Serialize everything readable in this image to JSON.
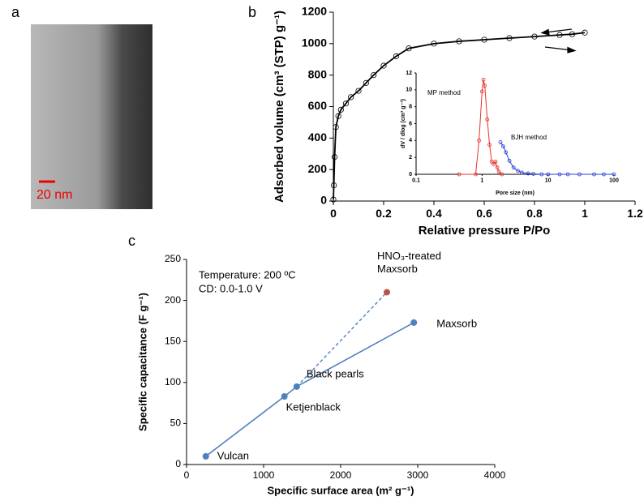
{
  "figure": {
    "panel_labels": [
      "a",
      "b",
      "c"
    ],
    "scale_bar": "20 nm"
  },
  "chart_data": [
    {
      "type": "line",
      "x_label": "Relative pressure P/Po",
      "y_label": "Adsorbed volume (cm³ (STP) g⁻¹)",
      "xlim": [
        0,
        1.2
      ],
      "xticks": [
        0,
        0.2,
        0.4,
        0.6,
        0.8,
        1,
        1.2
      ],
      "ylim": [
        0,
        1200
      ],
      "yticks": [
        0,
        200,
        400,
        600,
        800,
        1000,
        1200
      ],
      "series": [
        {
          "color": "#000000",
          "x": [
            0,
            0.002,
            0.005,
            0.01,
            0.02,
            0.03,
            0.05,
            0.07,
            0.1,
            0.13,
            0.16,
            0.2,
            0.25,
            0.3,
            0.4,
            0.5,
            0.6,
            0.7,
            0.8,
            0.9,
            0.95,
            1.0
          ],
          "values": [
            10,
            100,
            280,
            470,
            540,
            580,
            620,
            660,
            700,
            750,
            800,
            860,
            920,
            970,
            1000,
            1015,
            1025,
            1035,
            1045,
            1055,
            1060,
            1070
          ]
        }
      ]
    },
    {
      "type": "line",
      "log_x": true,
      "x_label": "Pore size (nm)",
      "y_label": "dV / dlog (cm³ g⁻¹)",
      "xlim": [
        0.1,
        100
      ],
      "xticks": [
        0.1,
        1,
        10,
        100
      ],
      "ylim": [
        0,
        12
      ],
      "yticks": [
        0,
        2,
        4,
        6,
        8,
        10,
        12
      ],
      "annotations": [
        "MP method",
        "BJH method"
      ],
      "series": [
        {
          "color": "#e8312b",
          "x": [
            0.45,
            0.8,
            0.9,
            1.0,
            1.05,
            1.1,
            1.2,
            1.3,
            1.4,
            1.5,
            1.6,
            1.7,
            1.8,
            2.0
          ],
          "values": [
            0,
            0,
            4,
            9.8,
            11.2,
            10.5,
            6.5,
            3.5,
            1.5,
            1.2,
            1.5,
            0.8,
            0.3,
            0
          ]
        },
        {
          "color": "#2b3fd6",
          "x": [
            1.9,
            2.1,
            2.3,
            2.6,
            3,
            3.5,
            4,
            5,
            6,
            8,
            10,
            15,
            20,
            30,
            50,
            70,
            100
          ],
          "values": [
            3.8,
            3.3,
            2.6,
            1.6,
            0.8,
            0.4,
            0.2,
            0.1,
            0.05,
            0,
            0,
            0,
            0,
            0,
            0,
            0,
            0
          ]
        }
      ]
    },
    {
      "type": "scatter",
      "x_label": "Specific surface area (m² g⁻¹)",
      "y_label": "Specific capacitance (F g⁻¹)",
      "xlim": [
        0,
        4000
      ],
      "xticks": [
        0,
        1000,
        2000,
        3000,
        4000
      ],
      "ylim": [
        0,
        250
      ],
      "yticks": [
        0,
        50,
        100,
        150,
        200,
        250
      ],
      "annotations": [
        "Temperature: 200 ºC",
        "CD: 0.0-1.0 V"
      ],
      "x": [
        250,
        1270,
        1430,
        2950,
        2600
      ],
      "values": [
        10,
        83,
        95,
        173,
        210
      ],
      "point_labels": [
        [
          "Vulcan"
        ],
        [
          "Ketjenblack"
        ],
        [
          "Black pearls"
        ],
        [
          "Maxsorb"
        ],
        [
          "HNO₃-treated",
          "Maxsorb"
        ]
      ],
      "colors": [
        "#4f81bd",
        "#4f81bd",
        "#4f81bd",
        "#4f81bd",
        "#c0504d"
      ],
      "dashed_link": [
        2,
        4
      ]
    }
  ]
}
